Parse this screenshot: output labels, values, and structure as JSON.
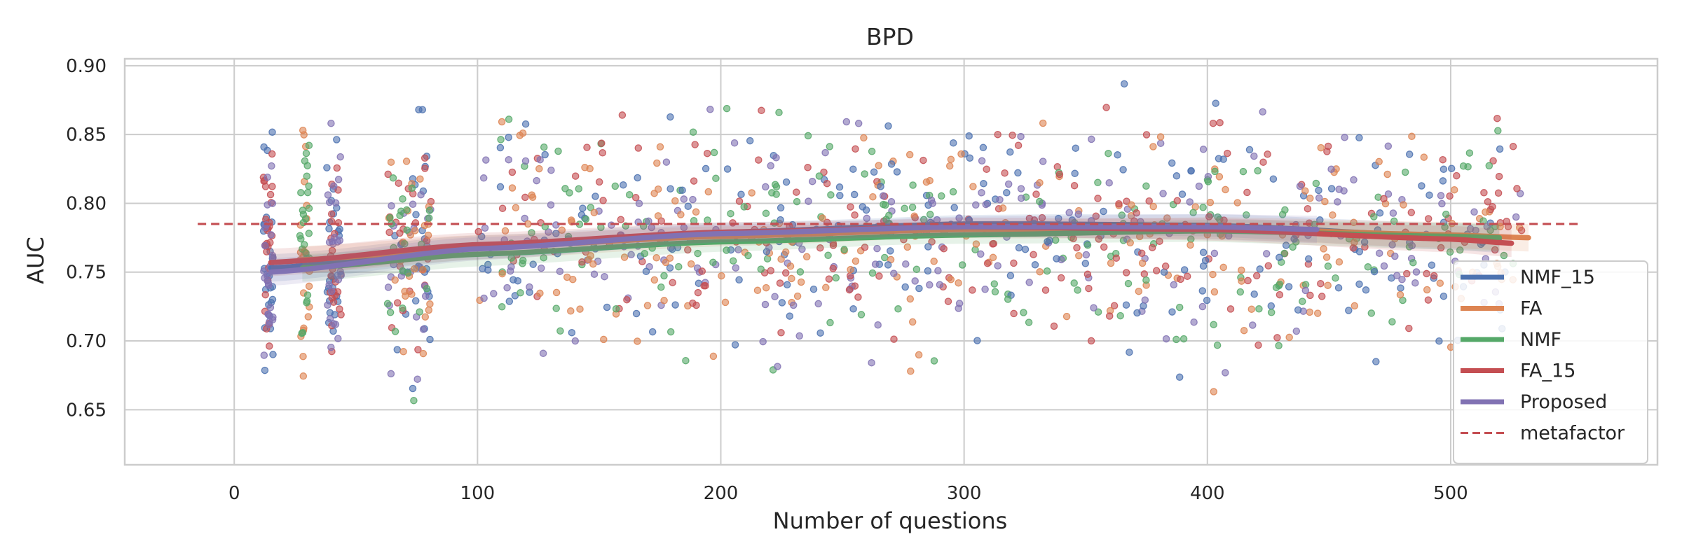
{
  "chart_data": {
    "type": "scatter",
    "title": "BPD",
    "xlabel": "Number of questions",
    "ylabel": "AUC",
    "xlim": [
      -45,
      585
    ],
    "ylim": [
      0.61,
      0.905
    ],
    "xticks": [
      0,
      100,
      200,
      300,
      400,
      500
    ],
    "yticks": [
      0.65,
      0.7,
      0.75,
      0.8,
      0.85,
      0.9
    ],
    "xtick_labels": [
      "0",
      "100",
      "200",
      "300",
      "400",
      "500"
    ],
    "ytick_labels": [
      "0.65",
      "0.70",
      "0.75",
      "0.80",
      "0.85",
      "0.90"
    ],
    "grid": true,
    "legend_position": "lower-right",
    "reference_line": {
      "name": "metafactor",
      "y": 0.785,
      "x_range": [
        -15,
        553
      ],
      "color": "#c44e52",
      "style": "dashed"
    },
    "series": [
      {
        "name": "NMF_15",
        "color": "#4c72b0",
        "x_range": [
          15,
          520
        ],
        "trend": {
          "x": [
            15,
            100,
            200,
            300,
            330,
            400,
            500,
            520
          ],
          "y": [
            0.753,
            0.768,
            0.779,
            0.785,
            0.785,
            0.784,
            0.776,
            0.774
          ]
        }
      },
      {
        "name": "FA",
        "color": "#dd8452",
        "x_range": [
          28,
          532
        ],
        "trend": {
          "x": [
            28,
            100,
            200,
            300,
            400,
            500,
            532
          ],
          "y": [
            0.759,
            0.768,
            0.776,
            0.781,
            0.782,
            0.777,
            0.775
          ]
        }
      },
      {
        "name": "NMF",
        "color": "#55a868",
        "x_range": [
          28,
          520
        ],
        "trend": {
          "x": [
            28,
            100,
            200,
            300,
            400,
            500,
            520
          ],
          "y": [
            0.753,
            0.763,
            0.772,
            0.777,
            0.78,
            0.776,
            0.775
          ]
        }
      },
      {
        "name": "FA_15",
        "color": "#c44e52",
        "x_range": [
          15,
          525
        ],
        "trend": {
          "x": [
            15,
            100,
            200,
            300,
            400,
            500,
            525
          ],
          "y": [
            0.757,
            0.77,
            0.779,
            0.783,
            0.781,
            0.774,
            0.771
          ]
        }
      },
      {
        "name": "Proposed",
        "color": "#8172b3",
        "x_range": [
          15,
          445
        ],
        "trend": {
          "x": [
            15,
            100,
            200,
            300,
            400,
            445
          ],
          "y": [
            0.75,
            0.767,
            0.778,
            0.783,
            0.783,
            0.781
          ]
        }
      }
    ],
    "scatter_clusters": [
      {
        "series": [
          "NMF_15",
          "FA_15",
          "Proposed"
        ],
        "x_center": 14,
        "x_spread": 2,
        "y_range": [
          0.642,
          0.866
        ]
      },
      {
        "series": [
          "FA",
          "NMF"
        ],
        "x_center": 29,
        "x_spread": 2,
        "y_range": [
          0.625,
          0.876
        ]
      },
      {
        "series": [
          "NMF_15",
          "FA_15",
          "Proposed"
        ],
        "x_center": 41,
        "x_spread": 3,
        "y_range": [
          0.669,
          0.861
        ]
      },
      {
        "series": [
          "NMF_15",
          "FA_15",
          "Proposed",
          "FA",
          "NMF"
        ],
        "x_center": 72,
        "x_spread": 9,
        "y_range": [
          0.652,
          0.868
        ]
      }
    ],
    "scatter_spread": {
      "x_range": [
        100,
        530
      ],
      "y_range": [
        0.66,
        0.89
      ]
    }
  },
  "legend": {
    "items": [
      {
        "name": "NMF_15",
        "color": "#4c72b0",
        "style": "solid"
      },
      {
        "name": "FA",
        "color": "#dd8452",
        "style": "solid"
      },
      {
        "name": "NMF",
        "color": "#55a868",
        "style": "solid"
      },
      {
        "name": "FA_15",
        "color": "#c44e52",
        "style": "solid"
      },
      {
        "name": "Proposed",
        "color": "#8172b3",
        "style": "solid"
      },
      {
        "name": "metafactor",
        "color": "#c44e52",
        "style": "dashed"
      }
    ]
  }
}
